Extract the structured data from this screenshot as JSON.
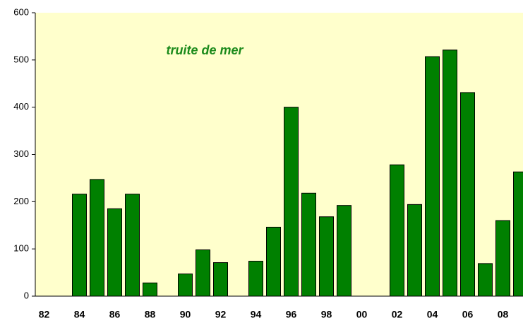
{
  "chart_data": {
    "type": "bar",
    "title": "truite de mer",
    "categories": [
      "82",
      null,
      "84",
      null,
      "86",
      null,
      "88",
      null,
      "90",
      null,
      "92",
      null,
      "94",
      null,
      "96",
      null,
      "98",
      null,
      "00",
      null,
      "02",
      null,
      "04",
      null,
      "06",
      null,
      "08",
      null
    ],
    "values": [
      null,
      null,
      216,
      247,
      185,
      216,
      28,
      null,
      47,
      98,
      71,
      null,
      74,
      146,
      400,
      218,
      168,
      192,
      null,
      null,
      278,
      194,
      507,
      521,
      431,
      69,
      160,
      263
    ],
    "color": "#008000",
    "background": "#ffffcc",
    "ylim": [
      0,
      600
    ],
    "yticks": [
      0,
      100,
      200,
      300,
      400,
      500,
      600
    ]
  }
}
